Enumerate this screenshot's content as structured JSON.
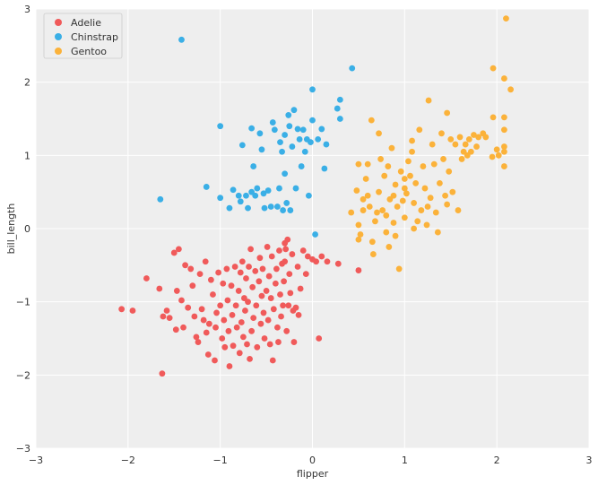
{
  "chart_data": {
    "type": "scatter",
    "xlabel": "flipper",
    "ylabel": "bill_length",
    "xlim": [
      -3,
      3
    ],
    "ylim": [
      -3,
      3
    ],
    "xticks": [
      -3,
      -2,
      -1,
      0,
      1,
      2,
      3
    ],
    "yticks": [
      -3,
      -2,
      -1,
      0,
      1,
      2,
      3
    ],
    "xtick_labels": [
      "−3",
      "−2",
      "−1",
      "0",
      "1",
      "2",
      "3"
    ],
    "ytick_labels": [
      "−3",
      "−2",
      "−1",
      "0",
      "1",
      "2",
      "3"
    ],
    "grid": true,
    "legend_position": "top-left",
    "background": "#eeeeee",
    "series": [
      {
        "name": "Adelie",
        "color": "#f05a5a",
        "points": [
          [
            -2.07,
            -1.1
          ],
          [
            -1.95,
            -1.12
          ],
          [
            -1.8,
            -0.68
          ],
          [
            -1.66,
            -0.82
          ],
          [
            -1.63,
            -1.98
          ],
          [
            -1.62,
            -1.2
          ],
          [
            -1.58,
            -1.12
          ],
          [
            -1.55,
            -1.22
          ],
          [
            -1.5,
            -0.33
          ],
          [
            -1.48,
            -1.38
          ],
          [
            -1.47,
            -0.85
          ],
          [
            -1.45,
            -0.28
          ],
          [
            -1.42,
            -0.98
          ],
          [
            -1.4,
            -1.35
          ],
          [
            -1.38,
            -0.5
          ],
          [
            -1.35,
            -1.08
          ],
          [
            -1.32,
            -0.55
          ],
          [
            -1.3,
            -0.78
          ],
          [
            -1.28,
            -1.2
          ],
          [
            -1.26,
            -1.48
          ],
          [
            -1.24,
            -1.55
          ],
          [
            -1.22,
            -0.62
          ],
          [
            -1.2,
            -1.1
          ],
          [
            -1.18,
            -1.25
          ],
          [
            -1.16,
            -0.45
          ],
          [
            -1.15,
            -1.42
          ],
          [
            -1.13,
            -1.72
          ],
          [
            -1.12,
            -1.3
          ],
          [
            -1.1,
            -0.7
          ],
          [
            -1.08,
            -0.9
          ],
          [
            -1.06,
            -1.8
          ],
          [
            -1.05,
            -1.35
          ],
          [
            -1.04,
            -1.15
          ],
          [
            -1.02,
            -0.6
          ],
          [
            -1.0,
            -1.05
          ],
          [
            -0.98,
            -1.5
          ],
          [
            -0.97,
            -0.75
          ],
          [
            -0.96,
            -1.25
          ],
          [
            -0.95,
            -1.62
          ],
          [
            -0.93,
            -0.55
          ],
          [
            -0.92,
            -0.98
          ],
          [
            -0.91,
            -1.4
          ],
          [
            -0.9,
            -1.88
          ],
          [
            -0.88,
            -0.78
          ],
          [
            -0.87,
            -1.18
          ],
          [
            -0.86,
            -1.6
          ],
          [
            -0.84,
            -0.52
          ],
          [
            -0.83,
            -1.05
          ],
          [
            -0.82,
            -1.35
          ],
          [
            -0.8,
            -0.85
          ],
          [
            -0.79,
            -1.7
          ],
          [
            -0.78,
            -0.6
          ],
          [
            -0.77,
            -1.28
          ],
          [
            -0.76,
            -0.45
          ],
          [
            -0.75,
            -1.48
          ],
          [
            -0.74,
            -0.95
          ],
          [
            -0.73,
            -1.12
          ],
          [
            -0.72,
            -0.68
          ],
          [
            -0.71,
            -1.58
          ],
          [
            -0.7,
            -1.0
          ],
          [
            -0.69,
            -0.52
          ],
          [
            -0.68,
            -1.78
          ],
          [
            -0.67,
            -0.28
          ],
          [
            -0.66,
            -1.4
          ],
          [
            -0.65,
            -0.8
          ],
          [
            -0.64,
            -1.22
          ],
          [
            -0.62,
            -0.58
          ],
          [
            -0.61,
            -1.05
          ],
          [
            -0.6,
            -1.62
          ],
          [
            -0.58,
            -0.72
          ],
          [
            -0.57,
            -0.4
          ],
          [
            -0.56,
            -1.3
          ],
          [
            -0.55,
            -0.92
          ],
          [
            -0.54,
            -0.55
          ],
          [
            -0.53,
            -1.15
          ],
          [
            -0.52,
            -1.5
          ],
          [
            -0.5,
            -0.85
          ],
          [
            -0.49,
            -0.25
          ],
          [
            -0.48,
            -1.25
          ],
          [
            -0.47,
            -0.65
          ],
          [
            -0.46,
            -1.58
          ],
          [
            -0.45,
            -0.95
          ],
          [
            -0.44,
            -0.38
          ],
          [
            -0.43,
            -1.8
          ],
          [
            -0.42,
            -1.1
          ],
          [
            -0.4,
            -0.75
          ],
          [
            -0.39,
            -0.55
          ],
          [
            -0.38,
            -1.35
          ],
          [
            -0.37,
            -1.55
          ],
          [
            -0.36,
            -0.3
          ],
          [
            -0.35,
            -0.9
          ],
          [
            -0.34,
            -1.2
          ],
          [
            -0.33,
            -0.48
          ],
          [
            -0.32,
            -1.05
          ],
          [
            -0.31,
            -0.72
          ],
          [
            -0.3,
            -0.45
          ],
          [
            -0.3,
            -0.2
          ],
          [
            -0.29,
            -0.28
          ],
          [
            -0.28,
            -1.4
          ],
          [
            -0.27,
            -0.15
          ],
          [
            -0.26,
            -1.05
          ],
          [
            -0.25,
            -0.62
          ],
          [
            -0.24,
            -0.88
          ],
          [
            -0.22,
            -0.35
          ],
          [
            -0.21,
            -1.12
          ],
          [
            -0.2,
            -1.55
          ],
          [
            -0.18,
            -1.08
          ],
          [
            -0.16,
            -0.52
          ],
          [
            -0.15,
            -1.18
          ],
          [
            -0.13,
            -0.82
          ],
          [
            -0.1,
            -0.3
          ],
          [
            -0.07,
            -0.62
          ],
          [
            -0.05,
            -0.38
          ],
          [
            0.0,
            -0.42
          ],
          [
            0.04,
            -0.45
          ],
          [
            0.07,
            -1.5
          ],
          [
            0.1,
            -0.38
          ],
          [
            0.16,
            -0.45
          ],
          [
            0.28,
            -0.48
          ],
          [
            0.5,
            -0.57
          ]
        ]
      },
      {
        "name": "Chinstrap",
        "color": "#3aafe6",
        "points": [
          [
            -1.65,
            0.4
          ],
          [
            -1.42,
            2.58
          ],
          [
            -1.15,
            0.57
          ],
          [
            -1.0,
            1.4
          ],
          [
            -1.0,
            0.42
          ],
          [
            -0.9,
            0.28
          ],
          [
            -0.86,
            0.53
          ],
          [
            -0.8,
            0.45
          ],
          [
            -0.78,
            0.37
          ],
          [
            -0.76,
            1.14
          ],
          [
            -0.72,
            0.45
          ],
          [
            -0.7,
            0.28
          ],
          [
            -0.66,
            0.5
          ],
          [
            -0.64,
            0.85
          ],
          [
            -0.62,
            0.45
          ],
          [
            -0.6,
            0.55
          ],
          [
            -0.57,
            1.3
          ],
          [
            -0.55,
            1.08
          ],
          [
            -0.53,
            0.48
          ],
          [
            -0.52,
            0.28
          ],
          [
            -0.48,
            0.52
          ],
          [
            -0.45,
            0.3
          ],
          [
            -0.43,
            1.45
          ],
          [
            -0.41,
            1.35
          ],
          [
            -0.38,
            0.3
          ],
          [
            -0.36,
            0.55
          ],
          [
            -0.35,
            1.18
          ],
          [
            -0.33,
            1.05
          ],
          [
            -0.32,
            0.25
          ],
          [
            -0.3,
            1.28
          ],
          [
            -0.3,
            0.75
          ],
          [
            -0.28,
            0.35
          ],
          [
            -0.26,
            1.55
          ],
          [
            -0.25,
            1.4
          ],
          [
            -0.24,
            0.25
          ],
          [
            -0.22,
            1.12
          ],
          [
            -0.2,
            1.62
          ],
          [
            -0.18,
            0.55
          ],
          [
            -0.16,
            1.36
          ],
          [
            -0.14,
            1.22
          ],
          [
            -0.12,
            0.85
          ],
          [
            -0.1,
            1.35
          ],
          [
            -0.08,
            1.05
          ],
          [
            -0.06,
            1.22
          ],
          [
            -0.04,
            0.45
          ],
          [
            -0.02,
            1.18
          ],
          [
            0.0,
            1.48
          ],
          [
            0.0,
            1.9
          ],
          [
            0.03,
            -0.08
          ],
          [
            0.06,
            1.22
          ],
          [
            0.1,
            1.36
          ],
          [
            0.13,
            0.82
          ],
          [
            0.15,
            1.15
          ],
          [
            0.27,
            1.64
          ],
          [
            0.3,
            1.5
          ],
          [
            0.3,
            1.76
          ],
          [
            0.43,
            2.19
          ],
          [
            -0.66,
            1.37
          ]
        ]
      },
      {
        "name": "Gentoo",
        "color": "#fbb23a",
        "points": [
          [
            0.42,
            0.22
          ],
          [
            0.48,
            0.52
          ],
          [
            0.5,
            0.05
          ],
          [
            0.5,
            -0.15
          ],
          [
            0.5,
            0.88
          ],
          [
            0.52,
            -0.08
          ],
          [
            0.55,
            0.25
          ],
          [
            0.55,
            0.4
          ],
          [
            0.58,
            0.68
          ],
          [
            0.6,
            0.88
          ],
          [
            0.62,
            0.3
          ],
          [
            0.64,
            1.48
          ],
          [
            0.65,
            -0.18
          ],
          [
            0.66,
            -0.35
          ],
          [
            0.68,
            0.1
          ],
          [
            0.7,
            0.22
          ],
          [
            0.72,
            0.5
          ],
          [
            0.74,
            0.95
          ],
          [
            0.76,
            0.25
          ],
          [
            0.78,
            0.72
          ],
          [
            0.8,
            0.18
          ],
          [
            0.82,
            0.85
          ],
          [
            0.83,
            -0.25
          ],
          [
            0.84,
            0.4
          ],
          [
            0.86,
            1.1
          ],
          [
            0.88,
            0.08
          ],
          [
            0.88,
            0.45
          ],
          [
            0.9,
            0.6
          ],
          [
            0.92,
            0.3
          ],
          [
            0.94,
            -0.55
          ],
          [
            0.96,
            0.78
          ],
          [
            0.98,
            0.38
          ],
          [
            1.0,
            0.55
          ],
          [
            1.0,
            0.15
          ],
          [
            1.02,
            0.48
          ],
          [
            1.04,
            0.92
          ],
          [
            1.06,
            0.72
          ],
          [
            1.08,
            1.05
          ],
          [
            1.08,
            1.2
          ],
          [
            1.1,
            0.35
          ],
          [
            1.12,
            0.62
          ],
          [
            1.14,
            0.1
          ],
          [
            1.16,
            1.35
          ],
          [
            1.18,
            0.25
          ],
          [
            1.2,
            0.85
          ],
          [
            1.22,
            0.55
          ],
          [
            1.24,
            0.05
          ],
          [
            1.26,
            1.75
          ],
          [
            1.28,
            0.42
          ],
          [
            1.3,
            1.15
          ],
          [
            1.32,
            0.88
          ],
          [
            1.34,
            0.22
          ],
          [
            1.36,
            -0.05
          ],
          [
            1.38,
            0.62
          ],
          [
            1.4,
            1.3
          ],
          [
            1.42,
            0.95
          ],
          [
            1.44,
            0.45
          ],
          [
            1.46,
            1.58
          ],
          [
            1.48,
            0.78
          ],
          [
            1.5,
            1.22
          ],
          [
            1.52,
            0.5
          ],
          [
            1.55,
            1.15
          ],
          [
            1.58,
            0.25
          ],
          [
            1.6,
            1.25
          ],
          [
            1.62,
            0.95
          ],
          [
            1.64,
            1.05
          ],
          [
            1.66,
            1.15
          ],
          [
            1.68,
            1.0
          ],
          [
            1.7,
            1.22
          ],
          [
            1.72,
            1.05
          ],
          [
            1.75,
            1.28
          ],
          [
            1.78,
            1.12
          ],
          [
            1.8,
            1.25
          ],
          [
            1.85,
            1.3
          ],
          [
            1.88,
            1.25
          ],
          [
            1.95,
            0.98
          ],
          [
            1.96,
            1.52
          ],
          [
            1.96,
            2.19
          ],
          [
            2.0,
            1.08
          ],
          [
            2.02,
            1.0
          ],
          [
            2.08,
            0.85
          ],
          [
            2.08,
            1.05
          ],
          [
            2.08,
            1.12
          ],
          [
            2.08,
            1.35
          ],
          [
            2.08,
            1.52
          ],
          [
            2.08,
            2.05
          ],
          [
            2.1,
            2.87
          ],
          [
            2.15,
            1.9
          ],
          [
            0.6,
            0.45
          ],
          [
            0.9,
            -0.1
          ],
          [
            1.1,
            0.0
          ],
          [
            0.72,
            1.3
          ],
          [
            0.8,
            -0.05
          ],
          [
            1.0,
            0.68
          ],
          [
            1.25,
            0.3
          ],
          [
            1.46,
            0.33
          ]
        ]
      }
    ]
  }
}
